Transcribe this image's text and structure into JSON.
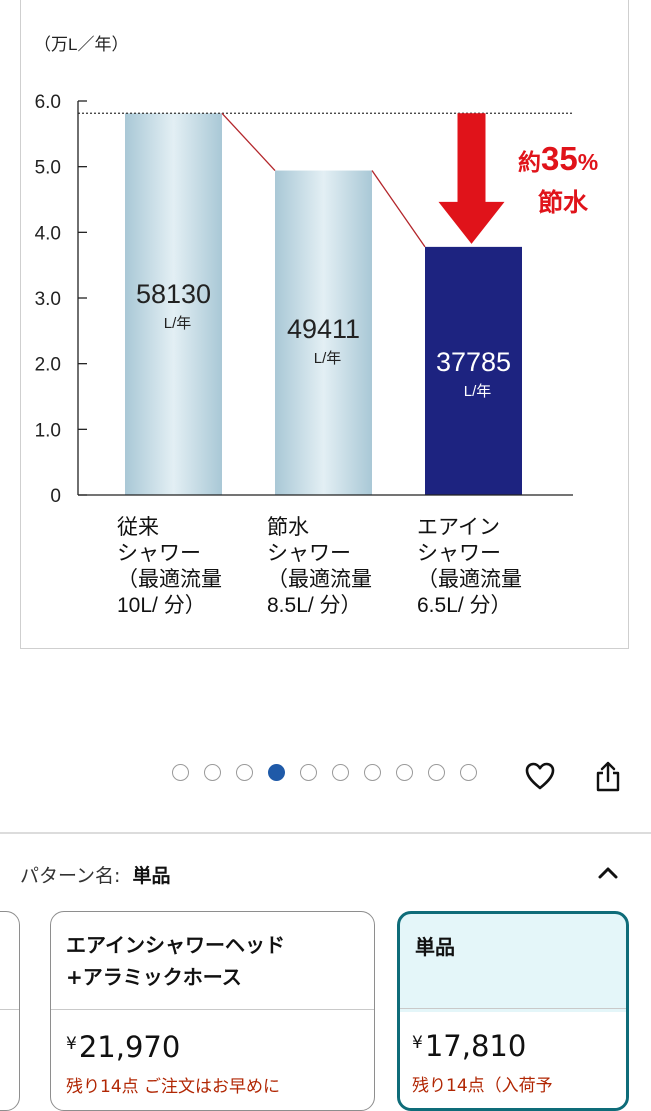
{
  "chart_data": {
    "type": "bar",
    "unit_label": "（万L／年）",
    "y_ticks": [
      "6.0",
      "5.0",
      "4.0",
      "3.0",
      "2.0",
      "1.0",
      "0"
    ],
    "ylim": [
      0,
      6
    ],
    "categories": [
      [
        "従来",
        "シャワー",
        "（最適流量",
        "10L/ 分）"
      ],
      [
        "節水",
        "シャワー",
        "（最適流量",
        "8.5L/ 分）"
      ],
      [
        "エアイン",
        "シャワー",
        "（最適流量",
        "6.5L/ 分）"
      ]
    ],
    "values": [
      58130,
      49411,
      37785
    ],
    "value_labels": [
      "58130",
      "49411",
      "37785"
    ],
    "value_unit": "L/年",
    "bar_colors": [
      "#bcd6e2",
      "#bcd6e2",
      "#1d2380"
    ],
    "annotation": {
      "prefix": "約",
      "number": "35",
      "suffix": "%",
      "line2": "節水",
      "color": "#e0131a"
    }
  },
  "carousel": {
    "total": 10,
    "active_index": 3
  },
  "actions": {
    "favorite_icon": "heart-icon",
    "share_icon": "share-icon"
  },
  "pattern": {
    "label": "パターン名:",
    "value": "単品"
  },
  "options": [
    {
      "title_line1": "エアインシャワーヘッド",
      "title_line2": "+アラミックホース",
      "currency": "¥",
      "price": "21,970",
      "stock": "残り14点 ご注文はお早めに"
    },
    {
      "title": "単品",
      "currency": "¥",
      "price": "17,810",
      "stock": "残り14点（入荷予"
    }
  ],
  "colors": {
    "accent": "#0e6c79",
    "stock": "#b12704",
    "active_dot": "#1f5aa8"
  }
}
